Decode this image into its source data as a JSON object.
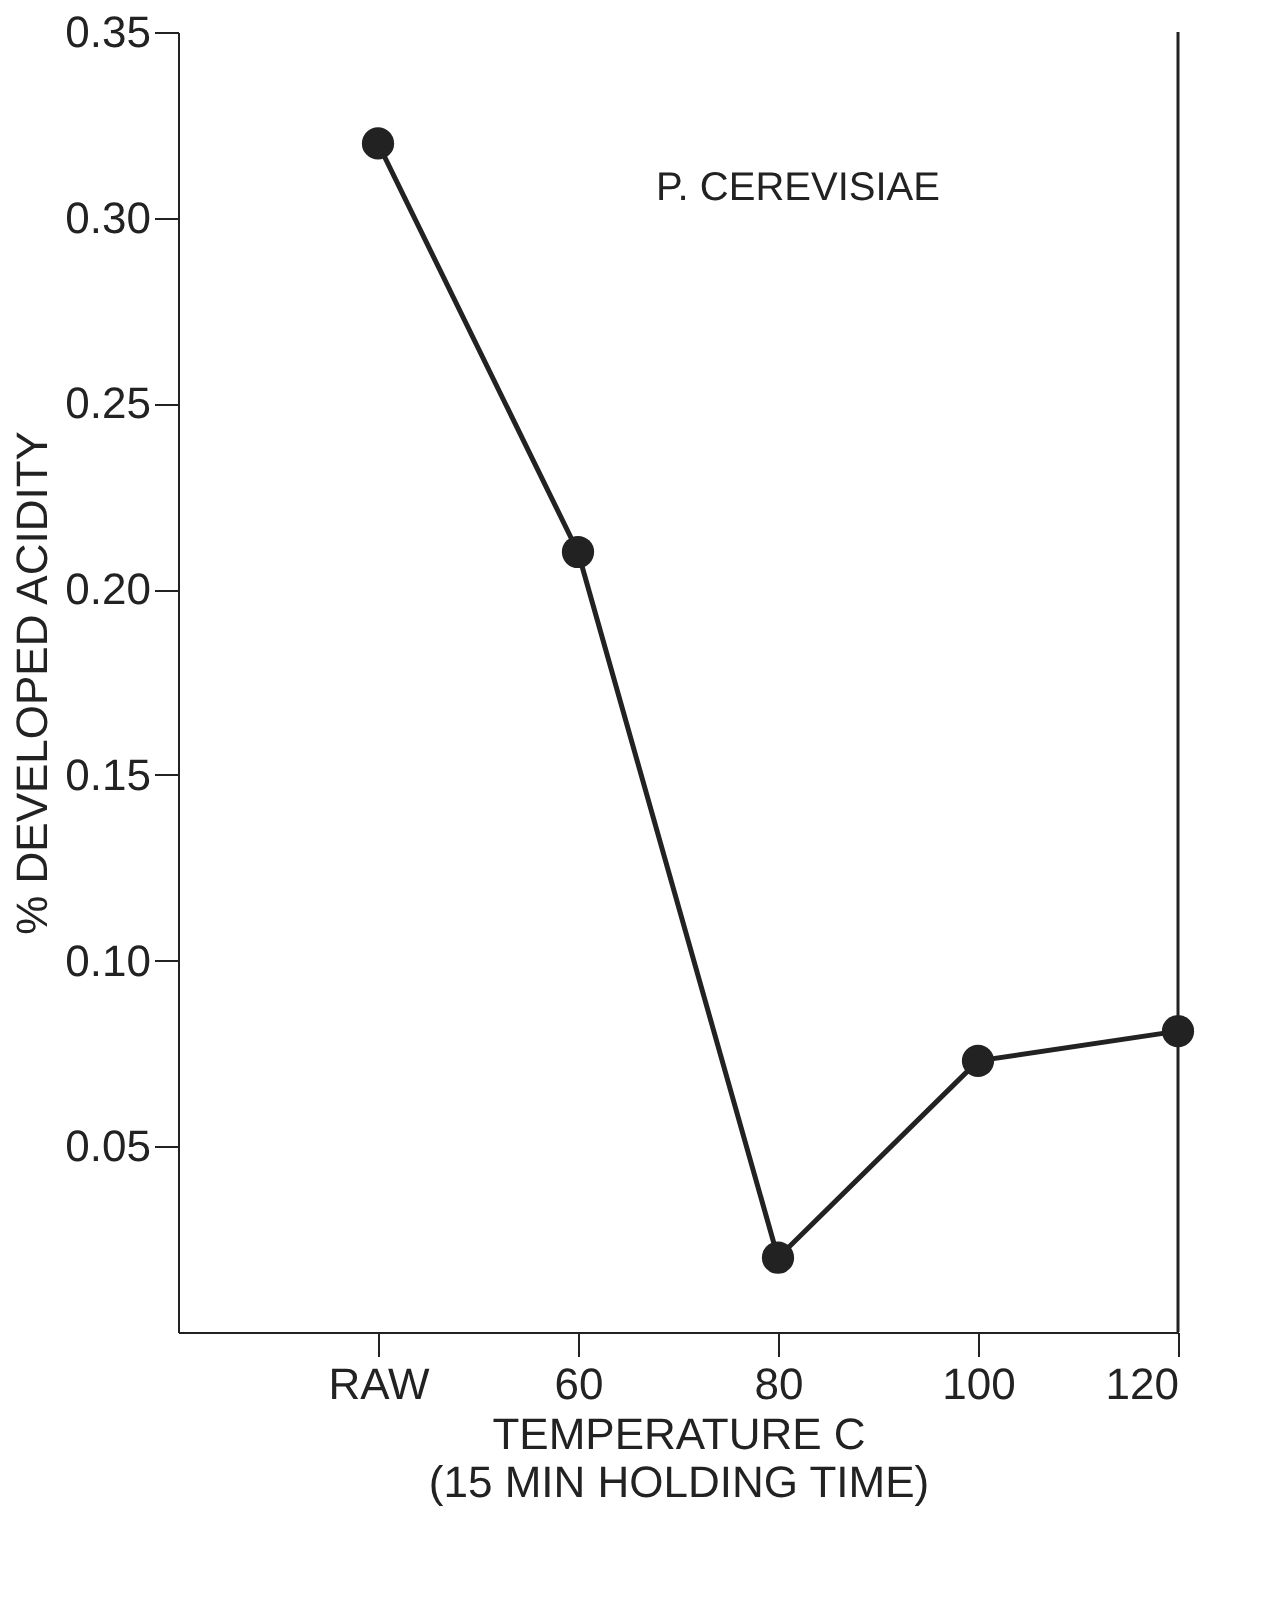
{
  "chart_data": {
    "type": "line",
    "categories": [
      "RAW",
      "60",
      "80",
      "100",
      "120"
    ],
    "series": [
      {
        "color": "#222222",
        "values": [
          0.32,
          0.21,
          0.02,
          0.073,
          0.081
        ]
      }
    ],
    "ylabel": "% DEVELOPED ACIDITY",
    "xlabel": "TEMPERATURE C\n(15 MIN HOLDING TIME)",
    "annotations": [
      "P. CEREVISIAE"
    ],
    "ylim": [
      0,
      0.35
    ],
    "yticks": [
      0.05,
      {
        "value": 0.1,
        "label": "0.10"
      },
      0.15,
      {
        "value": 0.2,
        "label": "0.20"
      },
      0.25,
      {
        "value": 0.3,
        "label": "0.30"
      },
      0.35
    ],
    "marker": "circle",
    "line_style": "solid",
    "grid": false
  }
}
